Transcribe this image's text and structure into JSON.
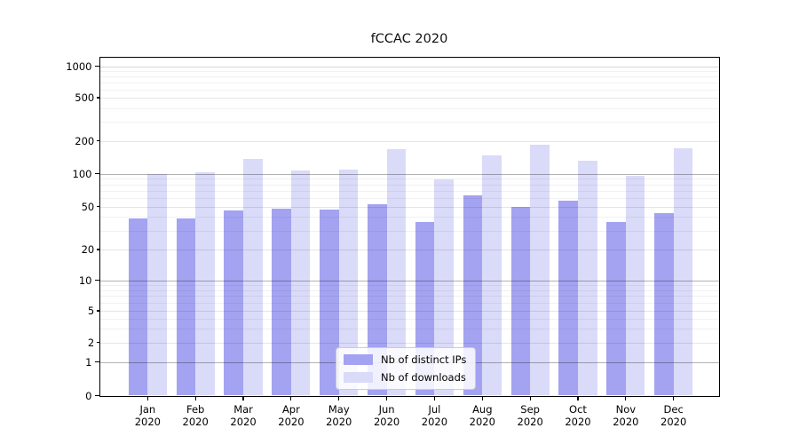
{
  "title": "fCCAC 2020",
  "chart_data": {
    "type": "bar",
    "title": "fCCAC 2020",
    "categories": [
      "Jan 2020",
      "Feb 2020",
      "Mar 2020",
      "Apr 2020",
      "May 2020",
      "Jun 2020",
      "Jul 2020",
      "Aug 2020",
      "Sep 2020",
      "Oct 2020",
      "Nov 2020",
      "Dec 2020"
    ],
    "series": [
      {
        "name": "Nb of distinct IPs",
        "color": "#a3a3f1",
        "values": [
          39,
          39,
          46,
          48,
          47,
          52,
          36,
          63,
          50,
          57,
          36,
          43
        ]
      },
      {
        "name": "Nb of downloads",
        "color": "#dadaf9",
        "values": [
          100,
          103,
          138,
          107,
          110,
          169,
          88,
          146,
          183,
          132,
          96,
          170
        ]
      }
    ],
    "xlabel": "",
    "ylabel": "",
    "yscale": "symlog",
    "ylim": [
      0,
      1000
    ],
    "yticks": [
      0,
      1,
      2,
      5,
      10,
      20,
      50,
      100,
      200,
      500,
      1000
    ],
    "grid": true,
    "legend_position": "lower center"
  },
  "colors": {
    "background": "#ffffff",
    "spine": "#000000",
    "grid_major": "rgba(0,0,0,0.30)",
    "grid_labeled_minor": "rgba(0,0,0,0.10)",
    "grid_unlabeled_minor": "rgba(0,0,0,0.055)"
  }
}
